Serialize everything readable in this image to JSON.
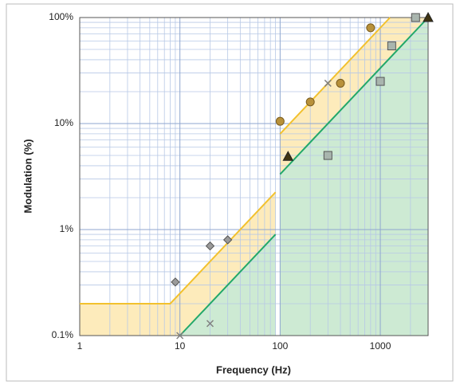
{
  "chart_data": {
    "type": "scatter",
    "x_label": "Frequency (Hz)",
    "y_label": "Modulation (%)",
    "log_x": true,
    "log_y": true,
    "grid": true,
    "minor_grid": true,
    "xlim": [
      1,
      3000
    ],
    "ylim": [
      0.1,
      100
    ],
    "xticks": [
      1,
      10,
      100,
      1000
    ],
    "yticks": [
      {
        "value": 0.1,
        "label": "0.1%"
      },
      {
        "value": 1,
        "label": "1%"
      },
      {
        "value": 10,
        "label": "10%"
      },
      {
        "value": 100,
        "label": "100%"
      }
    ],
    "lines": [
      {
        "color": "#f2c12e",
        "fill": "#fde9b4",
        "x": [
          1,
          8,
          90,
          null,
          100,
          1250
        ],
        "values": [
          0.2,
          0.2,
          2.25,
          null,
          8,
          100
        ]
      },
      {
        "color": "#22a86a",
        "fill": "#c8ead6",
        "x": [
          10,
          90,
          null,
          100,
          3000
        ],
        "values": [
          0.1,
          0.9,
          null,
          3.33,
          100
        ]
      }
    ],
    "series": [
      {
        "marker": "diamond",
        "color": "#9a9a9a",
        "x": [
          9,
          20,
          30
        ],
        "values": [
          0.32,
          0.7,
          0.8
        ]
      },
      {
        "marker": "cross",
        "color": "#808080",
        "x": [
          10,
          20,
          300
        ],
        "values": [
          0.1,
          0.13,
          24
        ]
      },
      {
        "marker": "circle",
        "color": "#b8913a",
        "x": [
          100,
          200,
          400,
          800
        ],
        "values": [
          10.5,
          16,
          24,
          80
        ]
      },
      {
        "marker": "square",
        "color": "#a9b5ae",
        "x": [
          300,
          1000,
          1300,
          2250
        ],
        "values": [
          5,
          25,
          54,
          100
        ]
      },
      {
        "marker": "triangle",
        "color": "#3f3412",
        "x": [
          120,
          3000
        ],
        "values": [
          4.9,
          100
        ]
      }
    ]
  }
}
